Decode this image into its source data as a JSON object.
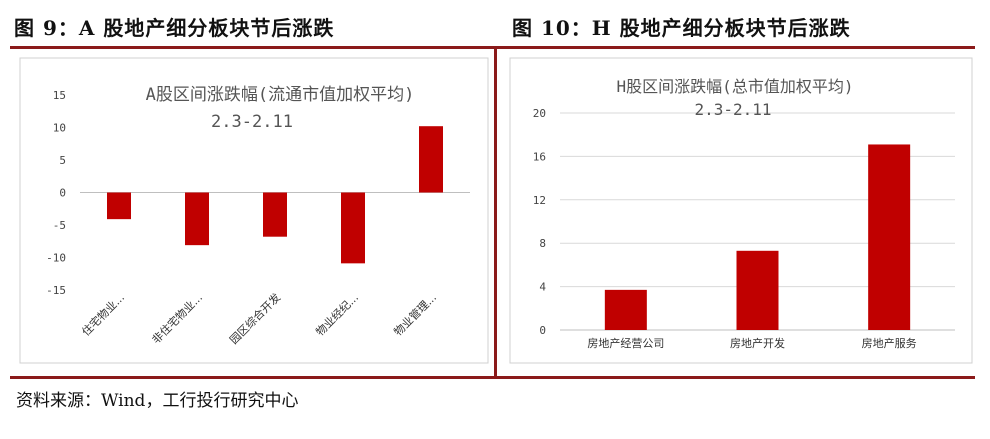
{
  "figures": {
    "left_title": "图  9：A 股地产细分板块节后涨跌",
    "right_title": "图  10：H 股地产细分板块节后涨跌"
  },
  "source": "资料来源：Wind，工行投行研究中心",
  "colors": {
    "rule": "#8b1a1a",
    "bar": "#c00000",
    "grid": "#d9d9d9",
    "axis": "#bfbfbf"
  },
  "chart_data": [
    {
      "type": "bar",
      "title": "A股区间涨跌幅(流通市值加权平均)",
      "subtitle": "2.3-2.11",
      "categories": [
        "住宅物业...",
        "非住宅物业...",
        "园区综合开发",
        "物业经纪...",
        "物业管理..."
      ],
      "values": [
        -4.1,
        -8.1,
        -6.8,
        -10.9,
        10.2
      ],
      "yticks": [
        15,
        10,
        5,
        0,
        -5,
        -10,
        -15
      ],
      "ylim": [
        -15,
        15
      ],
      "grid": false,
      "xlabel": "",
      "ylabel": ""
    },
    {
      "type": "bar",
      "title": "H股区间涨跌幅(总市值加权平均)",
      "subtitle": "2.3-2.11",
      "categories": [
        "房地产经营公司",
        "房地产开发",
        "房地产服务"
      ],
      "values": [
        3.7,
        7.3,
        17.1
      ],
      "yticks": [
        20,
        16,
        12,
        8,
        4,
        0
      ],
      "ylim": [
        0,
        20
      ],
      "grid": true,
      "xlabel": "",
      "ylabel": ""
    }
  ]
}
